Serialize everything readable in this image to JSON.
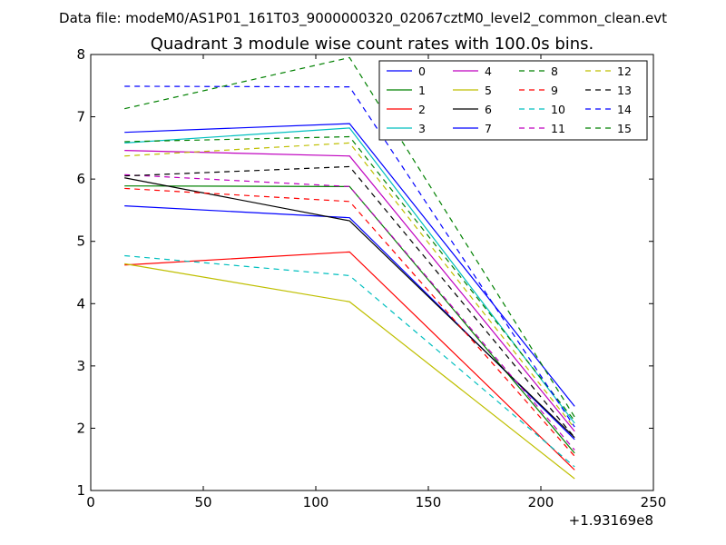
{
  "figure": {
    "suptitle": "Data file: modeM0/AS1P01_161T03_9000000320_02067cztM0_level2_common_clean.evt"
  },
  "chart_data": {
    "type": "line",
    "title": "Quadrant 3 module wise count rates with 100.0s bins.",
    "xlabel": "",
    "ylabel": "",
    "x_offset_label": "+1.93169e8",
    "xlim": [
      0,
      250
    ],
    "ylim": [
      1,
      8
    ],
    "x_ticks": [
      0,
      50,
      100,
      150,
      200,
      250
    ],
    "y_ticks": [
      1,
      2,
      3,
      4,
      5,
      6,
      7,
      8
    ],
    "grid": false,
    "legend_position": "top-right",
    "legend_columns": 4,
    "x": [
      15,
      115,
      215
    ],
    "series": [
      {
        "name": "0",
        "color": "#0000ff",
        "style": "solid",
        "values": [
          5.57,
          5.38,
          1.82
        ]
      },
      {
        "name": "1",
        "color": "#008000",
        "style": "solid",
        "values": [
          5.89,
          5.88,
          1.6
        ]
      },
      {
        "name": "2",
        "color": "#ff0000",
        "style": "solid",
        "values": [
          4.62,
          4.83,
          1.33
        ]
      },
      {
        "name": "3",
        "color": "#00bfbf",
        "style": "solid",
        "values": [
          6.58,
          6.82,
          2.08
        ]
      },
      {
        "name": "4",
        "color": "#bf00bf",
        "style": "solid",
        "values": [
          6.46,
          6.37,
          1.95
        ]
      },
      {
        "name": "5",
        "color": "#bfbf00",
        "style": "solid",
        "values": [
          4.64,
          4.03,
          1.19
        ]
      },
      {
        "name": "6",
        "color": "#000000",
        "style": "solid",
        "values": [
          6.02,
          5.33,
          1.85
        ]
      },
      {
        "name": "7",
        "color": "#0000ff",
        "style": "solid",
        "values": [
          6.75,
          6.89,
          2.35
        ]
      },
      {
        "name": "8",
        "color": "#008000",
        "style": "dashed",
        "values": [
          6.6,
          6.68,
          2.12
        ]
      },
      {
        "name": "9",
        "color": "#ff0000",
        "style": "dashed",
        "values": [
          5.85,
          5.64,
          1.55
        ]
      },
      {
        "name": "10",
        "color": "#00bfbf",
        "style": "dashed",
        "values": [
          4.77,
          4.45,
          1.38
        ]
      },
      {
        "name": "11",
        "color": "#bf00bf",
        "style": "dashed",
        "values": [
          6.07,
          5.88,
          1.65
        ]
      },
      {
        "name": "12",
        "color": "#bfbf00",
        "style": "dashed",
        "values": [
          6.37,
          6.58,
          2.0
        ]
      },
      {
        "name": "13",
        "color": "#000000",
        "style": "dashed",
        "values": [
          6.05,
          6.2,
          1.85
        ]
      },
      {
        "name": "14",
        "color": "#0000ff",
        "style": "dashed",
        "values": [
          7.49,
          7.48,
          2.02
        ]
      },
      {
        "name": "15",
        "color": "#008000",
        "style": "dashed",
        "values": [
          7.13,
          7.95,
          2.18
        ]
      }
    ]
  }
}
